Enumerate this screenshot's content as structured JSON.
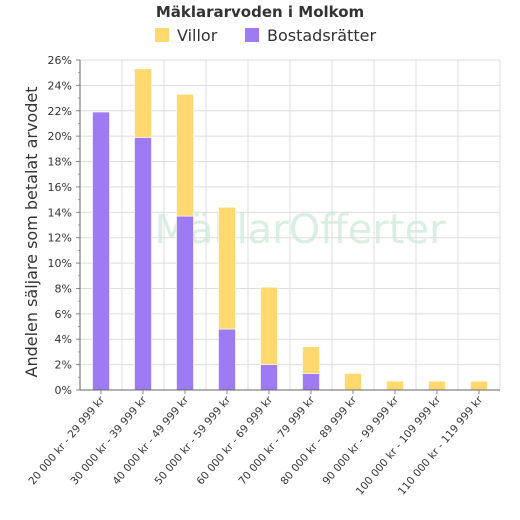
{
  "watermark": "MäklarOfferter",
  "colors": {
    "villor": "#FFD86F",
    "bostadsratter": "#9D7BF2",
    "grid": "#dddddd"
  },
  "chart_data": {
    "type": "bar",
    "stacked": true,
    "title": "Mäklararvoden i Molkom",
    "xlabel": "",
    "ylabel": "Andelen säljare som betalat arvodet",
    "ylim": [
      0,
      26
    ],
    "y_ticks": [
      "0%",
      "2%",
      "4%",
      "6%",
      "8%",
      "10%",
      "12%",
      "14%",
      "16%",
      "18%",
      "20%",
      "22%",
      "24%",
      "26%"
    ],
    "categories": [
      "20 000 kr - 29 999 kr",
      "30 000 kr - 39 999 kr",
      "40 000 kr - 49 999 kr",
      "50 000 kr - 59 999 kr",
      "60 000 kr - 69 999 kr",
      "70 000 kr - 79 999 kr",
      "80 000 kr - 89 999 kr",
      "90 000 kr - 99 999 kr",
      "100 000 kr - 109 999 kr",
      "110 000 kr - 119 999 kr"
    ],
    "series": [
      {
        "name": "Bostadsrätter",
        "color": "#9D7BF2",
        "values": [
          21.9,
          19.9,
          13.7,
          4.8,
          2.0,
          1.3,
          0,
          0,
          0,
          0
        ]
      },
      {
        "name": "Villor",
        "color": "#FFD86F",
        "values": [
          0,
          5.4,
          9.6,
          9.6,
          6.1,
          2.1,
          1.3,
          0.7,
          0.7,
          0.7
        ]
      }
    ],
    "legend": {
      "position": "top",
      "order": [
        "Villor",
        "Bostadsrätter"
      ]
    },
    "grid": true
  }
}
